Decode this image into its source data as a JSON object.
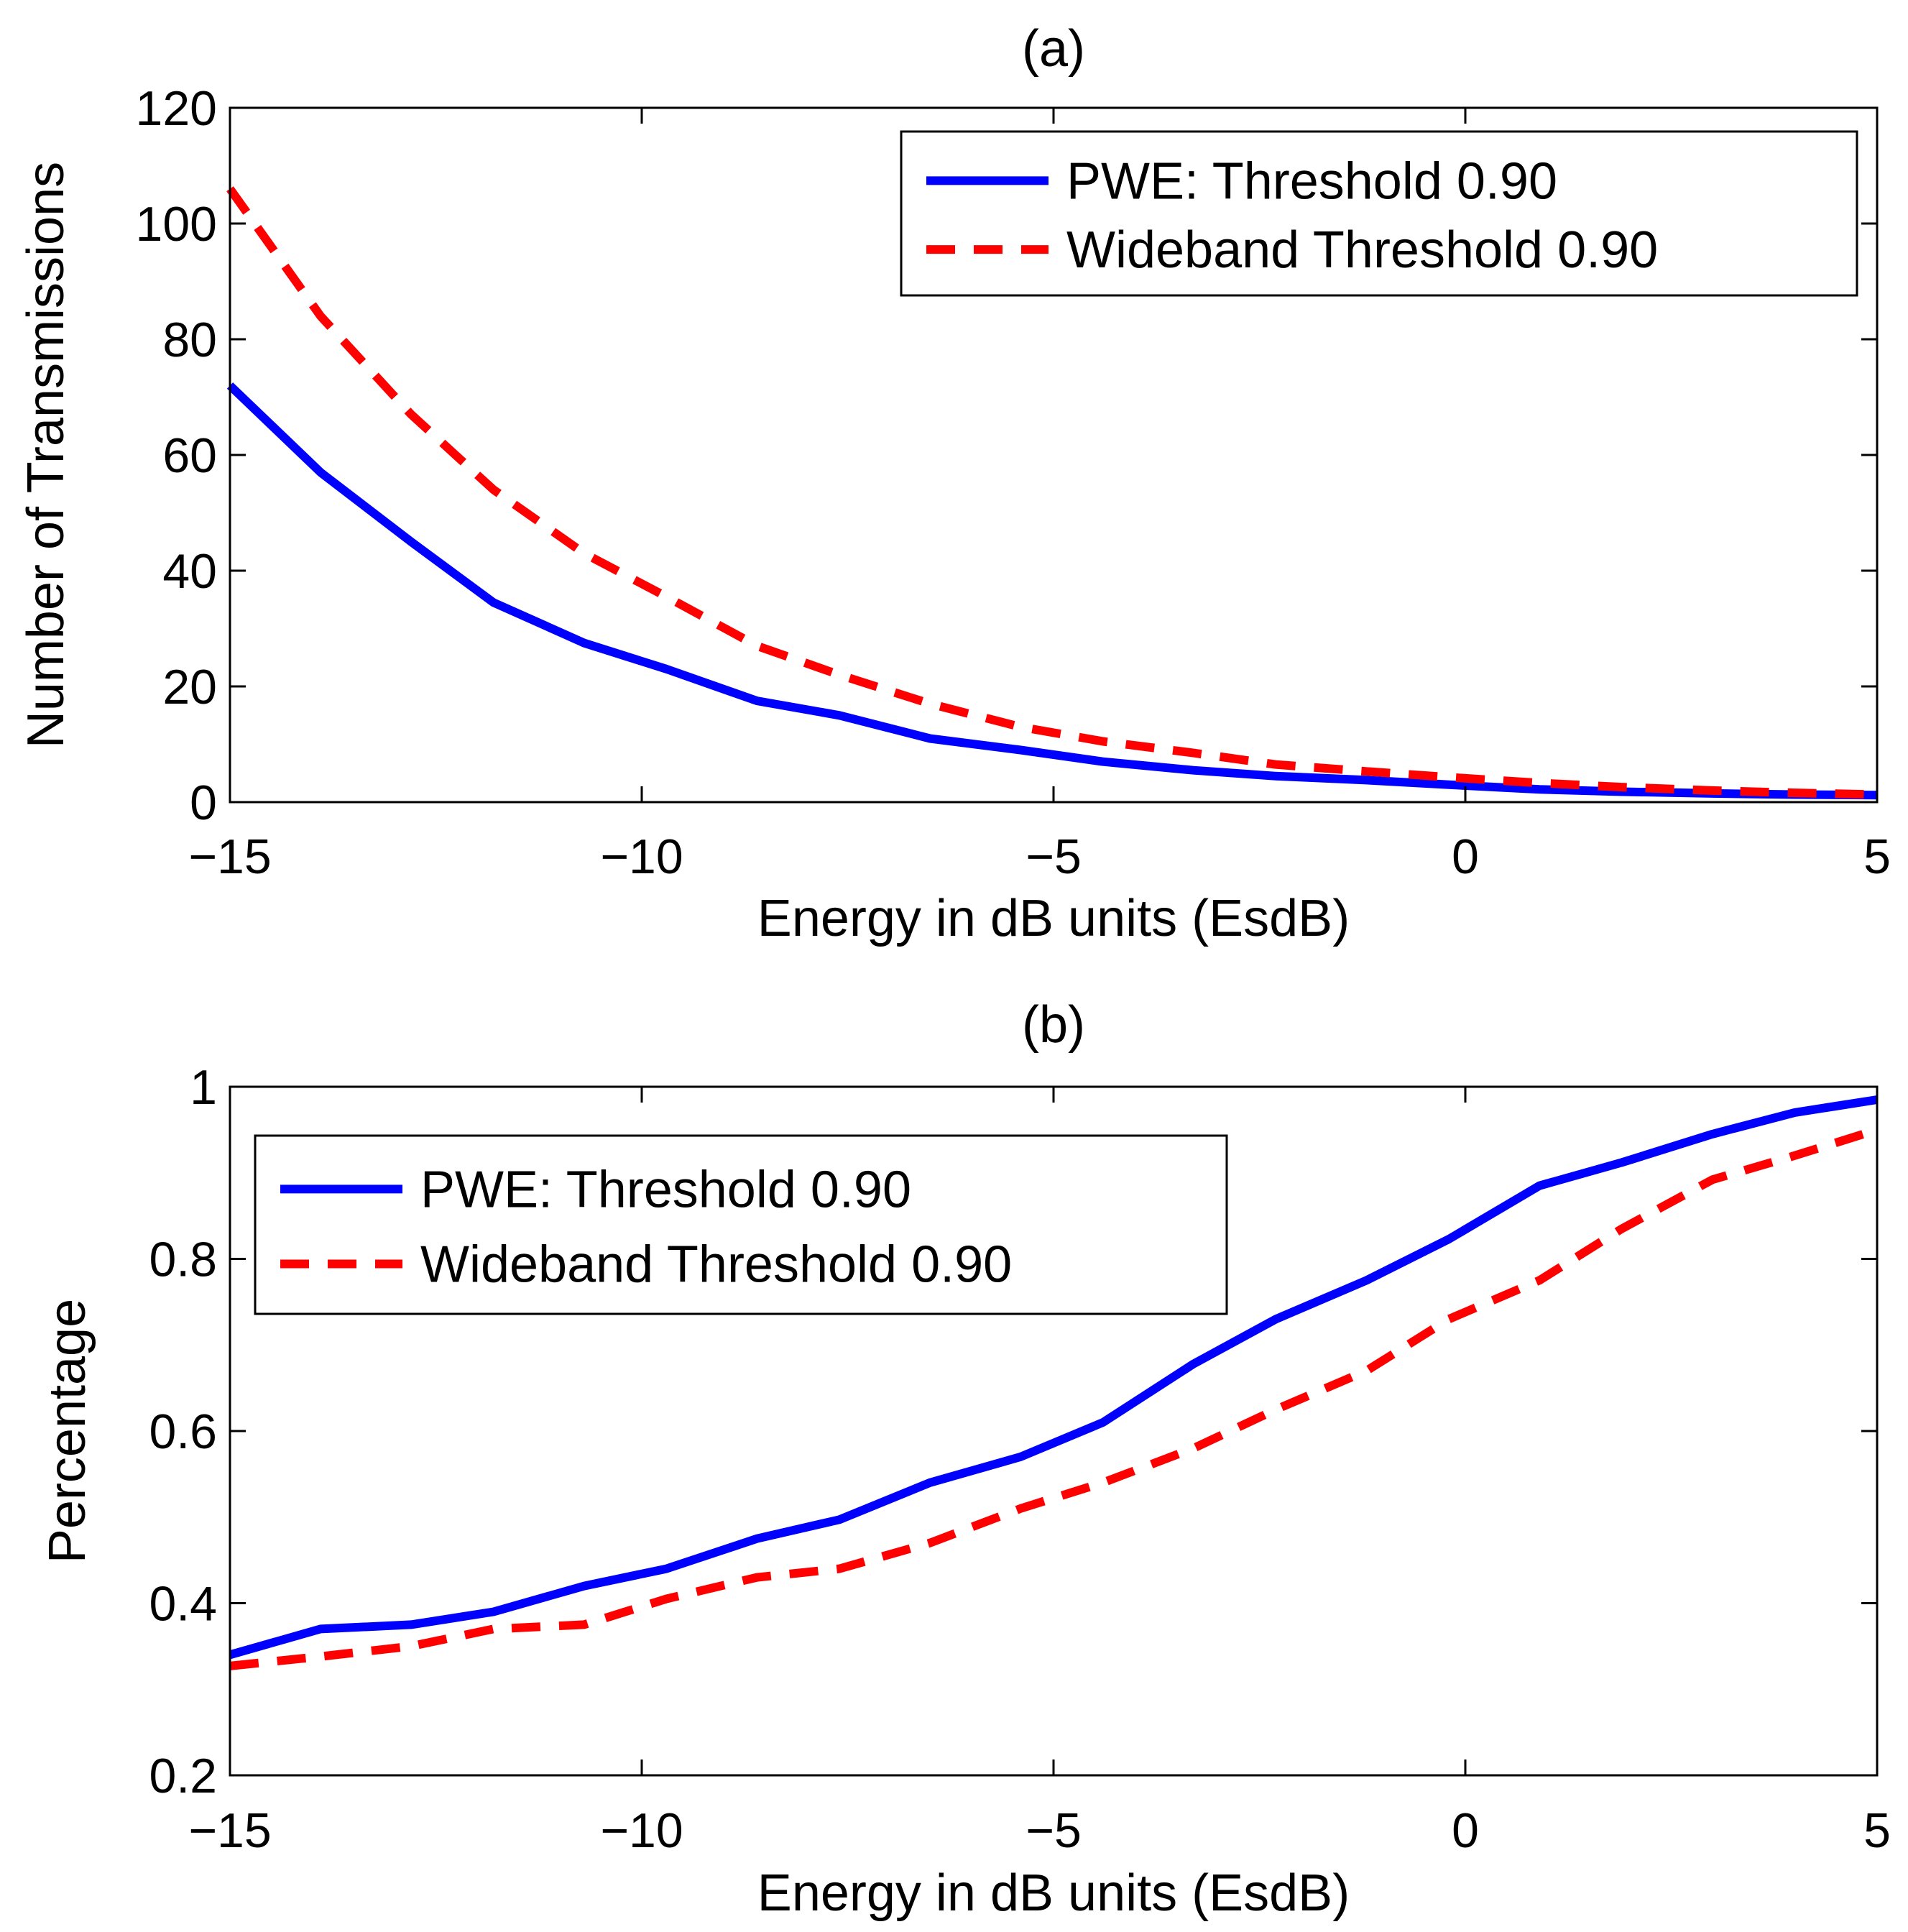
{
  "chart_data": [
    {
      "type": "line",
      "title": "(a)",
      "xlabel": "Energy in dB units (EsdB)",
      "ylabel": "Number of Transmissions",
      "xlim": [
        -15,
        5
      ],
      "ylim": [
        0,
        120
      ],
      "x_ticks": [
        -15,
        -10,
        -5,
        0,
        5
      ],
      "x_tick_labels": [
        "−15",
        "−10",
        "−5",
        "0",
        "5"
      ],
      "y_ticks": [
        0,
        20,
        40,
        60,
        80,
        100,
        120
      ],
      "y_tick_labels": [
        "0",
        "20",
        "40",
        "60",
        "80",
        "100",
        "120"
      ],
      "grid": false,
      "legend_position": "top-right",
      "x": [
        -15,
        -13.9,
        -12.8,
        -11.8,
        -10.7,
        -9.7,
        -8.6,
        -7.6,
        -6.5,
        -5.4,
        -4.4,
        -3.3,
        -2.3,
        -1.2,
        -0.2,
        0.9,
        1.9,
        3.0,
        4.0,
        5.0
      ],
      "series": [
        {
          "name": "PWE: Threshold 0.90",
          "color": "#0000ff",
          "dash": "solid",
          "values": [
            72,
            57,
            45,
            34.5,
            27.5,
            23,
            17.5,
            15,
            11,
            9,
            7,
            5.5,
            4.5,
            3.8,
            3,
            2.2,
            1.8,
            1.5,
            1.3,
            1.2
          ]
        },
        {
          "name": "Wideband Threshold 0.90",
          "color": "#ff0000",
          "dash": "dashed",
          "values": [
            106,
            84,
            67,
            54,
            43,
            35.5,
            27,
            22,
            17,
            13,
            10.5,
            8.5,
            6.5,
            5.3,
            4.3,
            3.3,
            2.6,
            2.0,
            1.6,
            1.3
          ]
        }
      ]
    },
    {
      "type": "line",
      "title": "(b)",
      "xlabel": "Energy in dB units (EsdB)",
      "ylabel": "Percentage",
      "xlim": [
        -15,
        5
      ],
      "ylim": [
        0.2,
        1
      ],
      "x_ticks": [
        -15,
        -10,
        -5,
        0,
        5
      ],
      "x_tick_labels": [
        "−15",
        "−10",
        "−5",
        "0",
        "5"
      ],
      "y_ticks": [
        0.2,
        0.4,
        0.6,
        0.8,
        1
      ],
      "y_tick_labels": [
        "0.2",
        "0.4",
        "0.6",
        "0.8",
        "1"
      ],
      "grid": false,
      "legend_position": "top-left",
      "x": [
        -15,
        -13.9,
        -12.8,
        -11.8,
        -10.7,
        -9.7,
        -8.6,
        -7.6,
        -6.5,
        -5.4,
        -4.4,
        -3.3,
        -2.3,
        -1.2,
        -0.2,
        0.9,
        1.9,
        3.0,
        4.0,
        5.0
      ],
      "series": [
        {
          "name": "PWE: Threshold 0.90",
          "color": "#0000ff",
          "dash": "solid",
          "values": [
            0.34,
            0.37,
            0.375,
            0.39,
            0.42,
            0.44,
            0.475,
            0.497,
            0.54,
            0.57,
            0.61,
            0.678,
            0.73,
            0.775,
            0.823,
            0.885,
            0.912,
            0.945,
            0.97,
            0.985
          ]
        },
        {
          "name": "Wideband Threshold 0.90",
          "color": "#ff0000",
          "dash": "dashed",
          "values": [
            0.327,
            0.338,
            0.35,
            0.37,
            0.375,
            0.405,
            0.43,
            0.44,
            0.47,
            0.51,
            0.54,
            0.58,
            0.625,
            0.67,
            0.73,
            0.775,
            0.835,
            0.892,
            0.92,
            0.95
          ]
        }
      ]
    }
  ]
}
